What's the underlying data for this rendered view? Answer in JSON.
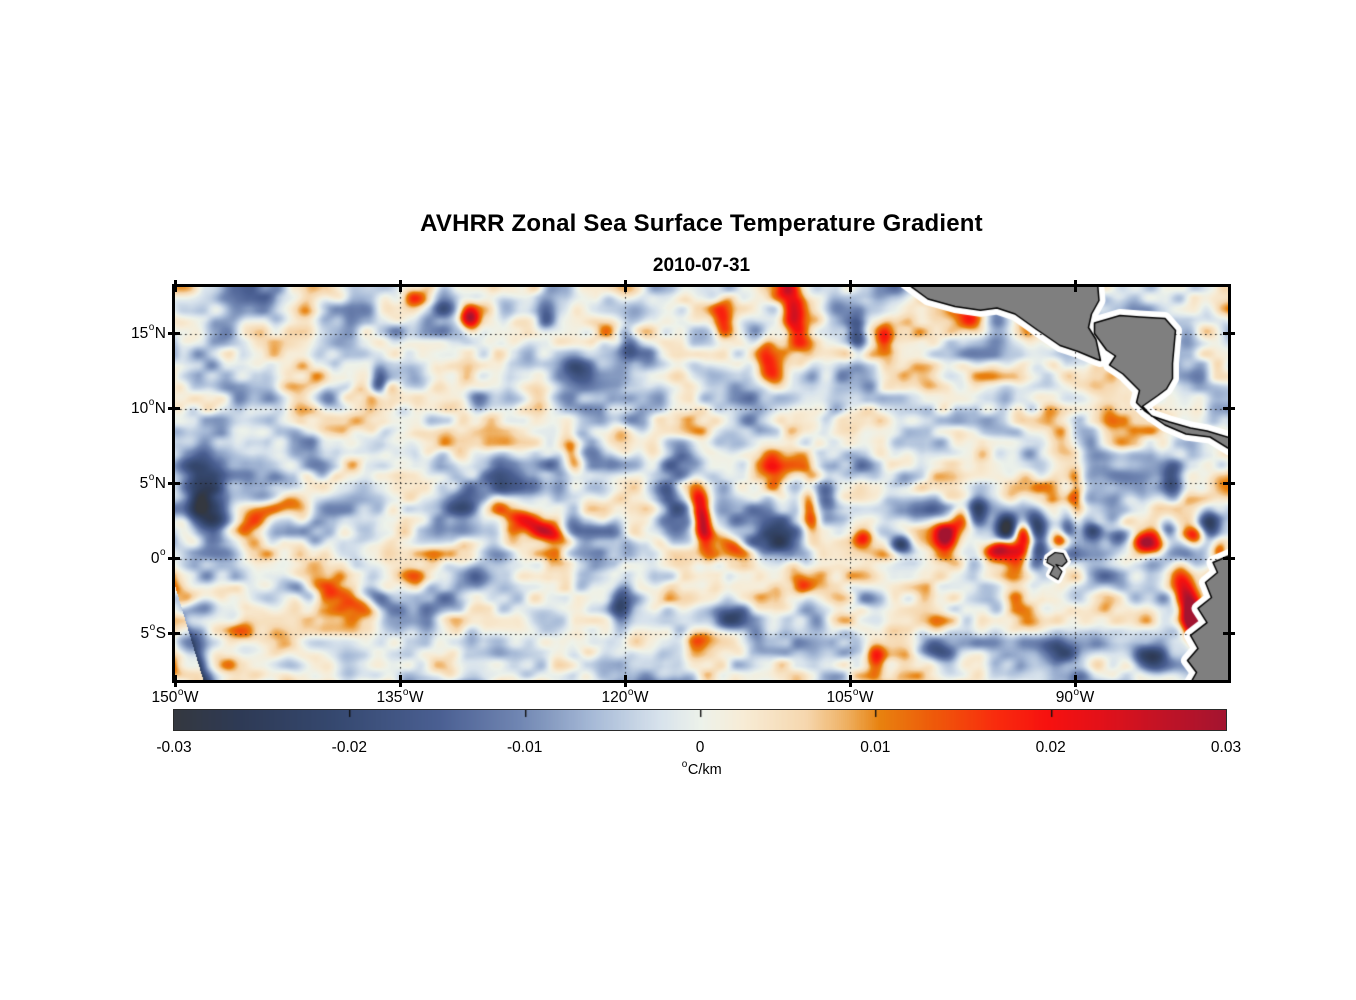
{
  "chart_data": {
    "type": "heatmap",
    "title": "AVHRR Zonal Sea Surface Temperature Gradient",
    "subtitle": "2010-07-31",
    "x_axis": {
      "range": [
        -150,
        -79.8
      ],
      "ticks": [
        {
          "lon": -150,
          "deg": "150",
          "hem": "W",
          "label": "150°W"
        },
        {
          "lon": -135,
          "deg": "135",
          "hem": "W",
          "label": "135°W"
        },
        {
          "lon": -120,
          "deg": "120",
          "hem": "W",
          "label": "120°W"
        },
        {
          "lon": -105,
          "deg": "105",
          "hem": "W",
          "label": "105°W"
        },
        {
          "lon": -90,
          "deg": "90",
          "hem": "W",
          "label": "90°W"
        }
      ]
    },
    "y_axis": {
      "range": [
        -8.1,
        18.1
      ],
      "ticks": [
        {
          "lat": 15,
          "deg": "15",
          "hem": "N",
          "label": "15°N"
        },
        {
          "lat": 10,
          "deg": "10",
          "hem": "N",
          "label": "10°N"
        },
        {
          "lat": 5,
          "deg": "5",
          "hem": "N",
          "label": "5°N"
        },
        {
          "lat": 0,
          "deg": "0",
          "hem": "",
          "label": "0°"
        },
        {
          "lat": -5,
          "deg": "5",
          "hem": "S",
          "label": "5°S"
        }
      ]
    },
    "grid": {
      "style": "dotted",
      "color": "#1c1c1c"
    },
    "colorbar": {
      "min": -0.03,
      "max": 0.03,
      "tick_values": [
        -0.03,
        -0.02,
        -0.01,
        0,
        0.01,
        0.02,
        0.03
      ],
      "tick_labels": [
        "-0.03",
        "-0.02",
        "-0.01",
        "0",
        "0.01",
        "0.02",
        "0.03"
      ],
      "unit_label": "°C/km",
      "unit_sup": "o",
      "unit_text": "C/km",
      "stops": [
        [
          0.0,
          "#343840"
        ],
        [
          0.06,
          "#2e3a55"
        ],
        [
          0.15,
          "#35486f"
        ],
        [
          0.25,
          "#4a5f92"
        ],
        [
          0.33,
          "#7288b4"
        ],
        [
          0.4,
          "#a9bcd8"
        ],
        [
          0.46,
          "#d7e2ec"
        ],
        [
          0.5,
          "#edf2ea"
        ],
        [
          0.54,
          "#f7ecd6"
        ],
        [
          0.6,
          "#f6d7ae"
        ],
        [
          0.64,
          "#eeae5e"
        ],
        [
          0.67,
          "#e8820f"
        ],
        [
          0.72,
          "#ee5b0a"
        ],
        [
          0.78,
          "#f92c0d"
        ],
        [
          0.83,
          "#f7110f"
        ],
        [
          0.88,
          "#e31119"
        ],
        [
          0.94,
          "#c11326"
        ],
        [
          1.0,
          "#a31430"
        ]
      ]
    },
    "land": {
      "fill": "#7f7f7f",
      "coast": "#000000",
      "halo": "#ffffff",
      "polygons": {
        "mexico_guatemala": [
          [
            -101.3,
            18.4
          ],
          [
            -99.8,
            17.3
          ],
          [
            -98.0,
            16.8
          ],
          [
            -96.3,
            16.55
          ],
          [
            -95.2,
            16.7
          ],
          [
            -94.0,
            16.3
          ],
          [
            -92.6,
            15.3
          ],
          [
            -91.0,
            14.2
          ],
          [
            -89.8,
            13.8
          ],
          [
            -88.6,
            13.3
          ],
          [
            -88.3,
            13.2
          ],
          [
            -88.6,
            14.6
          ],
          [
            -89.1,
            15.4
          ],
          [
            -88.9,
            16.3
          ],
          [
            -88.4,
            17.2
          ],
          [
            -88.5,
            18.4
          ]
        ],
        "honduras_panama": [
          [
            -88.7,
            15.7
          ],
          [
            -87.0,
            16.2
          ],
          [
            -85.7,
            16.1
          ],
          [
            -84.0,
            16.0
          ],
          [
            -83.3,
            15.2
          ],
          [
            -83.5,
            13.0
          ],
          [
            -83.5,
            12.0
          ],
          [
            -83.9,
            11.3
          ],
          [
            -84.5,
            10.85
          ],
          [
            -85.5,
            10.15
          ],
          [
            -84.9,
            9.5
          ],
          [
            -83.7,
            9.1
          ],
          [
            -82.3,
            8.7
          ],
          [
            -81.2,
            8.5
          ],
          [
            -79.7,
            8.05
          ],
          [
            -79.7,
            7.3
          ],
          [
            -81.0,
            8.1
          ],
          [
            -82.6,
            8.3
          ],
          [
            -84.0,
            8.9
          ],
          [
            -85.3,
            9.8
          ],
          [
            -85.9,
            10.4
          ],
          [
            -85.7,
            11.2
          ],
          [
            -86.8,
            12.3
          ],
          [
            -87.7,
            12.9
          ],
          [
            -87.3,
            13.5
          ],
          [
            -87.9,
            13.9
          ],
          [
            -88.7,
            15.0
          ]
        ],
        "south_america": [
          [
            -79.7,
            0.2
          ],
          [
            -80.8,
            -0.27
          ],
          [
            -80.5,
            -0.93
          ],
          [
            -81.3,
            -1.6
          ],
          [
            -80.9,
            -2.6
          ],
          [
            -81.8,
            -3.33
          ],
          [
            -81.2,
            -4.27
          ],
          [
            -82.3,
            -5.13
          ],
          [
            -81.8,
            -6.0
          ],
          [
            -82.5,
            -6.8
          ],
          [
            -81.9,
            -7.6
          ],
          [
            -82.3,
            -8.3
          ],
          [
            -79.7,
            -8.3
          ]
        ],
        "galapagos": [
          [
            -91.8,
            0.07
          ],
          [
            -91.33,
            0.4
          ],
          [
            -90.8,
            0.33
          ],
          [
            -90.53,
            -0.2
          ],
          [
            -90.87,
            -0.53
          ],
          [
            -91.27,
            -0.4
          ],
          [
            -90.87,
            -0.87
          ],
          [
            -91.13,
            -1.4
          ],
          [
            -91.67,
            -1.07
          ],
          [
            -91.4,
            -0.53
          ],
          [
            -91.87,
            -0.27
          ]
        ]
      }
    },
    "noise": {
      "seed": 20100731,
      "octaves": [
        [
          64,
          0.55,
          0.45
        ],
        [
          30,
          0.95,
          -0.3
        ],
        [
          15,
          0.5,
          0.1
        ]
      ],
      "amp": 0.019
    },
    "features": [
      [
        -114.9,
        2.6,
        0.032,
        0.45,
        1.6,
        8
      ],
      [
        -113.0,
        1.0,
        0.016,
        1.0,
        0.4,
        -25
      ],
      [
        -143.6,
        3.3,
        0.016,
        1.9,
        0.55,
        28
      ],
      [
        -127.3,
        3.0,
        0.022,
        1.5,
        0.5,
        -25
      ],
      [
        -125.0,
        1.7,
        0.018,
        1.0,
        0.45,
        -15
      ],
      [
        -110.2,
        5.8,
        0.014,
        0.5,
        1.0,
        10
      ],
      [
        -107.7,
        3.3,
        0.022,
        0.45,
        1.4,
        5
      ],
      [
        -108.8,
        16.5,
        0.028,
        0.6,
        1.8,
        12
      ],
      [
        -110.5,
        13.1,
        0.018,
        0.55,
        1.0,
        15
      ],
      [
        -113.5,
        16.0,
        0.015,
        0.5,
        0.9,
        0
      ],
      [
        -130.4,
        16.1,
        0.026,
        0.45,
        0.55,
        0
      ],
      [
        -134.0,
        17.3,
        0.014,
        0.8,
        0.5,
        -10
      ],
      [
        -102.7,
        14.7,
        0.014,
        0.4,
        0.7,
        0
      ],
      [
        -96.8,
        15.9,
        0.017,
        0.8,
        0.5,
        10
      ],
      [
        -82.5,
        -2.7,
        0.031,
        0.6,
        1.5,
        22
      ],
      [
        -82.2,
        -4.4,
        0.026,
        0.5,
        0.9,
        10
      ],
      [
        -84.7,
        0.9,
        0.022,
        0.55,
        0.55,
        0
      ],
      [
        -120.4,
        8.6,
        0.012,
        0.7,
        0.7,
        0
      ],
      [
        -123.5,
        6.8,
        0.018,
        0.45,
        1.1,
        10
      ],
      [
        -138.4,
        -2.7,
        0.016,
        1.7,
        0.5,
        -22
      ],
      [
        -145.5,
        -4.9,
        0.013,
        0.8,
        0.5,
        -15
      ],
      [
        -115.0,
        -5.4,
        0.012,
        0.8,
        0.6,
        0
      ],
      [
        -108.2,
        -1.9,
        0.013,
        0.6,
        0.6,
        0
      ],
      [
        -103.3,
        -6.4,
        0.018,
        0.45,
        0.8,
        10
      ],
      [
        -90.0,
        4.3,
        0.02,
        0.45,
        1.2,
        0
      ],
      [
        -104.1,
        1.4,
        0.02,
        0.5,
        0.5,
        0
      ],
      [
        -98.7,
        1.6,
        0.022,
        0.5,
        0.6,
        0
      ],
      [
        -97.7,
        2.5,
        0.018,
        0.6,
        0.7,
        0
      ],
      [
        -95.0,
        0.6,
        0.024,
        0.8,
        0.5,
        0
      ],
      [
        -93.5,
        1.4,
        0.026,
        0.5,
        0.8,
        0
      ],
      [
        -90.9,
        1.3,
        0.022,
        0.5,
        0.5,
        0
      ],
      [
        -85.4,
        1.1,
        0.02,
        0.5,
        0.5,
        0
      ],
      [
        -82.1,
        1.5,
        0.018,
        0.5,
        0.5,
        0
      ],
      [
        -80.4,
        0.6,
        0.016,
        0.4,
        0.5,
        0
      ],
      [
        -148.0,
        3.6,
        -0.024,
        1.1,
        2.0,
        15
      ],
      [
        -130.6,
        4.0,
        -0.02,
        1.3,
        1.0,
        30
      ],
      [
        -116.9,
        3.9,
        -0.02,
        0.8,
        1.4,
        8
      ],
      [
        -116.2,
        6.5,
        -0.016,
        0.8,
        0.9,
        0
      ],
      [
        -110.4,
        1.3,
        -0.022,
        1.2,
        0.9,
        -10
      ],
      [
        -106.5,
        4.3,
        -0.015,
        0.5,
        1.0,
        0
      ],
      [
        -125.3,
        16.3,
        -0.02,
        0.55,
        1.0,
        0
      ],
      [
        -132.1,
        16.9,
        -0.018,
        0.6,
        0.8,
        0
      ],
      [
        -119.8,
        14.6,
        -0.016,
        0.55,
        0.9,
        0
      ],
      [
        -136.4,
        12.0,
        -0.02,
        0.4,
        0.8,
        0
      ],
      [
        -123.4,
        12.6,
        -0.012,
        0.8,
        0.8,
        0
      ],
      [
        -104.5,
        14.9,
        -0.016,
        0.45,
        1.0,
        0
      ],
      [
        -106.4,
        9.3,
        -0.013,
        0.7,
        0.7,
        0
      ],
      [
        -99.8,
        -5.9,
        -0.018,
        1.1,
        0.55,
        -18
      ],
      [
        -91.1,
        -6.2,
        -0.015,
        0.8,
        0.6,
        0
      ],
      [
        -85.1,
        -6.6,
        -0.02,
        1.0,
        0.7,
        -10
      ],
      [
        -80.5,
        -7.0,
        -0.018,
        0.7,
        0.6,
        0
      ],
      [
        -120.4,
        -3.2,
        -0.016,
        0.5,
        0.8,
        0
      ],
      [
        -112.8,
        -3.9,
        -0.014,
        0.9,
        0.6,
        -10
      ],
      [
        -141.8,
        -1.9,
        -0.014,
        1.0,
        0.5,
        -20
      ],
      [
        -136.6,
        -2.6,
        -0.016,
        0.9,
        0.5,
        -30
      ],
      [
        -148.1,
        -3.2,
        -0.012,
        0.8,
        0.5,
        0
      ],
      [
        -83.6,
        5.2,
        -0.016,
        0.5,
        0.9,
        0
      ],
      [
        -101.4,
        5.3,
        -0.012,
        0.7,
        0.5,
        0
      ],
      [
        -96.5,
        3.4,
        -0.016,
        0.5,
        0.7,
        0
      ],
      [
        -101.6,
        0.9,
        -0.02,
        0.55,
        0.5,
        0
      ],
      [
        -94.5,
        2.1,
        -0.028,
        0.55,
        0.7,
        0
      ],
      [
        -92.5,
        0.8,
        -0.02,
        0.5,
        0.9,
        0
      ],
      [
        -92.7,
        2.4,
        -0.02,
        0.55,
        0.6,
        0
      ],
      [
        -88.9,
        1.9,
        -0.016,
        0.5,
        0.5,
        0
      ],
      [
        -87.1,
        1.3,
        -0.02,
        0.6,
        0.5,
        0
      ],
      [
        -83.9,
        2.1,
        -0.015,
        0.5,
        0.6,
        0
      ],
      [
        -81.1,
        2.4,
        -0.022,
        0.5,
        0.7,
        0
      ],
      [
        -90.5,
        1.8,
        -0.016,
        0.4,
        0.9,
        0
      ]
    ]
  }
}
